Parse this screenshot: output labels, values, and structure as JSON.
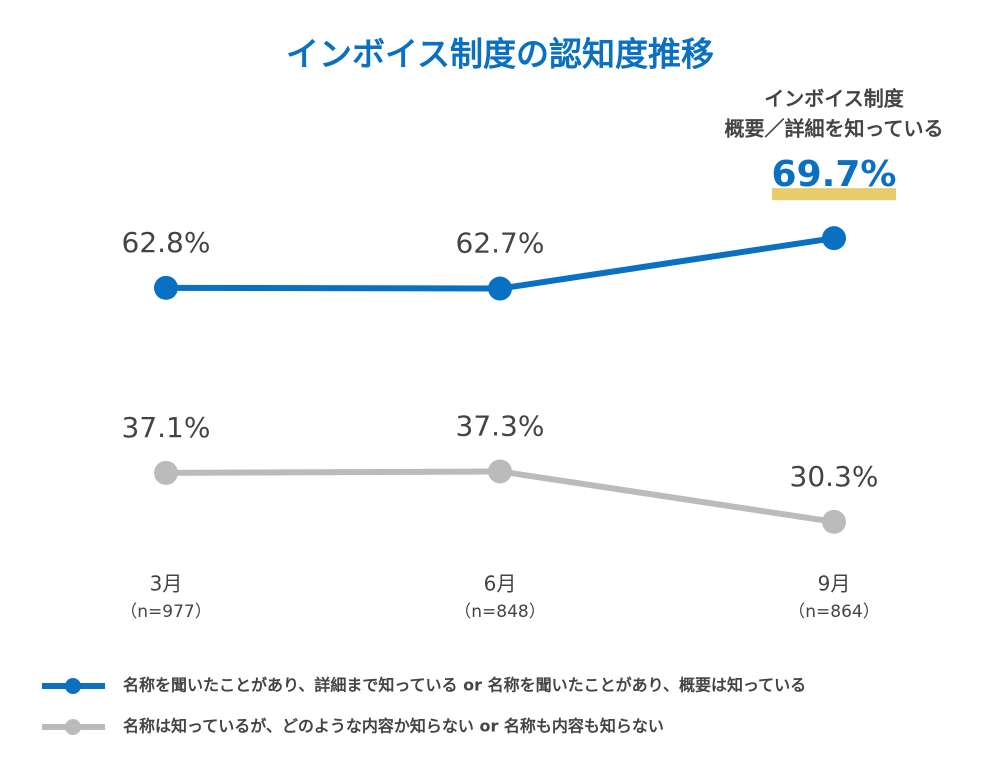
{
  "chart_data": {
    "type": "line",
    "title": "インボイス制度の認知度推移",
    "categories": [
      "3月",
      "6月",
      "9月"
    ],
    "category_notes": [
      "（n=977）",
      "（n=848）",
      "（n=864）"
    ],
    "series": [
      {
        "name": "名称を聞いたことがあり、詳細まで知っている or 名称を聞いたことがあり、概要は知っている",
        "color": "#0a70c2",
        "values": [
          62.8,
          62.7,
          69.7
        ],
        "value_labels": [
          "62.8%",
          "62.7%",
          "69.7%"
        ]
      },
      {
        "name": "名称は知っているが、どのような内容か知らない or 名称も内容も知らない",
        "color": "#bbbbbb",
        "values": [
          37.1,
          37.3,
          30.3
        ],
        "value_labels": [
          "37.1%",
          "37.3%",
          "30.3%"
        ]
      }
    ],
    "annotation": [
      "インボイス制度",
      "概要／詳細を知っている"
    ],
    "ylim": [
      25,
      75
    ],
    "grid": false,
    "legend": "bottom"
  }
}
